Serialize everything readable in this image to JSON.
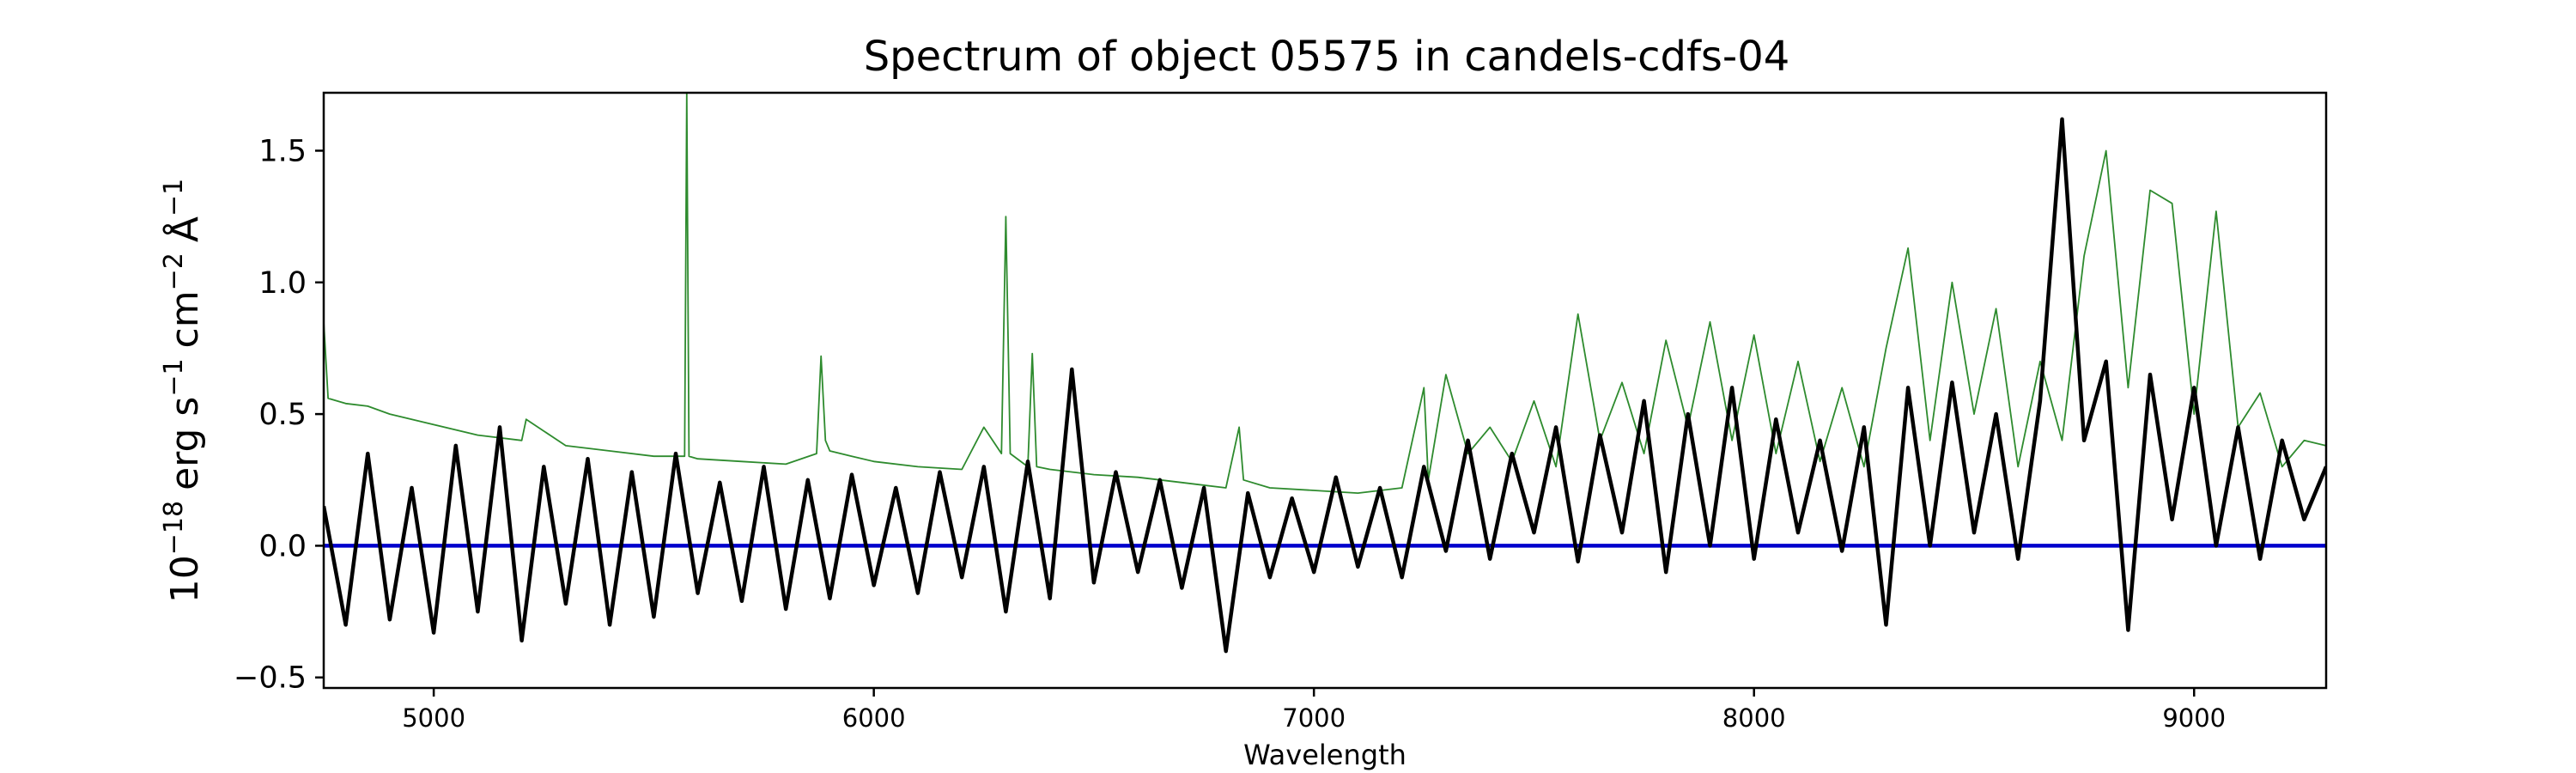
{
  "chart_data": {
    "type": "line",
    "title": "Spectrum of object 05575 in candels-cdfs-04",
    "xlabel": "Wavelength",
    "ylabel": {
      "base": "10",
      "base_exp": "−18",
      "unit1": "erg s",
      "unit1_exp": "−1",
      "unit2": "cm",
      "unit2_exp": "−2",
      "unit3": "Å",
      "unit3_exp": "−1"
    },
    "xlim": [
      4750,
      9300
    ],
    "ylim": [
      -0.54,
      1.72
    ],
    "xticks": [
      5000,
      6000,
      7000,
      8000,
      9000
    ],
    "xtick_labels": [
      "5000",
      "6000",
      "7000",
      "8000",
      "9000"
    ],
    "yticks": [
      -0.5,
      0.0,
      0.5,
      1.0,
      1.5
    ],
    "ytick_labels": [
      "−0.5",
      "0.0",
      "0.5",
      "1.0",
      "1.5"
    ],
    "grid": false,
    "colors": {
      "flux": "#000000",
      "error": "#2e8b2e",
      "zero": "#0000cc"
    },
    "series": [
      {
        "key": "flux",
        "style": "black-thick",
        "x": [
          4750,
          4800,
          4850,
          4900,
          4950,
          5000,
          5050,
          5100,
          5150,
          5200,
          5250,
          5300,
          5350,
          5400,
          5450,
          5500,
          5550,
          5600,
          5650,
          5700,
          5750,
          5800,
          5850,
          5900,
          5950,
          6000,
          6050,
          6100,
          6150,
          6200,
          6250,
          6300,
          6350,
          6400,
          6450,
          6500,
          6550,
          6600,
          6650,
          6700,
          6750,
          6800,
          6850,
          6900,
          6950,
          7000,
          7050,
          7100,
          7150,
          7200,
          7250,
          7300,
          7350,
          7400,
          7450,
          7500,
          7550,
          7600,
          7650,
          7700,
          7750,
          7800,
          7850,
          7900,
          7950,
          8000,
          8050,
          8100,
          8150,
          8200,
          8250,
          8300,
          8350,
          8400,
          8450,
          8500,
          8550,
          8600,
          8650,
          8700,
          8750,
          8800,
          8850,
          8900,
          8950,
          9000,
          9050,
          9100,
          9150,
          9200,
          9250,
          9300
        ],
        "y": [
          0.15,
          -0.3,
          0.35,
          -0.28,
          0.22,
          -0.33,
          0.38,
          -0.25,
          0.45,
          -0.36,
          0.3,
          -0.22,
          0.33,
          -0.3,
          0.28,
          -0.27,
          0.35,
          -0.18,
          0.24,
          -0.21,
          0.3,
          -0.24,
          0.25,
          -0.2,
          0.27,
          -0.15,
          0.22,
          -0.18,
          0.28,
          -0.12,
          0.3,
          -0.25,
          0.32,
          -0.2,
          0.67,
          -0.14,
          0.28,
          -0.1,
          0.25,
          -0.16,
          0.22,
          -0.4,
          0.2,
          -0.12,
          0.18,
          -0.1,
          0.26,
          -0.08,
          0.22,
          -0.12,
          0.3,
          -0.02,
          0.4,
          -0.05,
          0.35,
          0.05,
          0.45,
          -0.06,
          0.42,
          0.05,
          0.55,
          -0.1,
          0.5,
          0.0,
          0.6,
          -0.05,
          0.48,
          0.05,
          0.4,
          -0.02,
          0.45,
          -0.3,
          0.6,
          0.0,
          0.62,
          0.05,
          0.5,
          -0.05,
          0.55,
          1.62,
          0.4,
          0.7,
          -0.32,
          0.65,
          0.1,
          0.6,
          0.0,
          0.45,
          -0.05,
          0.4,
          0.1,
          0.3
        ]
      },
      {
        "key": "error",
        "style": "green-thin",
        "x": [
          4750,
          4760,
          4800,
          4850,
          4900,
          5000,
          5100,
          5200,
          5210,
          5300,
          5400,
          5500,
          5570,
          5575,
          5580,
          5600,
          5700,
          5800,
          5870,
          5880,
          5890,
          5900,
          5950,
          6000,
          6100,
          6200,
          6250,
          6290,
          6300,
          6310,
          6350,
          6360,
          6370,
          6400,
          6500,
          6600,
          6700,
          6800,
          6830,
          6840,
          6900,
          7000,
          7100,
          7200,
          7250,
          7260,
          7300,
          7350,
          7400,
          7450,
          7500,
          7550,
          7600,
          7650,
          7700,
          7750,
          7800,
          7850,
          7900,
          7950,
          8000,
          8050,
          8100,
          8150,
          8200,
          8250,
          8300,
          8350,
          8400,
          8450,
          8500,
          8550,
          8600,
          8650,
          8700,
          8750,
          8800,
          8850,
          8900,
          8950,
          9000,
          9050,
          9100,
          9150,
          9200,
          9250,
          9300
        ],
        "y": [
          0.85,
          0.56,
          0.54,
          0.53,
          0.5,
          0.46,
          0.42,
          0.4,
          0.48,
          0.38,
          0.36,
          0.34,
          0.34,
          1.72,
          0.34,
          0.33,
          0.32,
          0.31,
          0.35,
          0.72,
          0.4,
          0.36,
          0.34,
          0.32,
          0.3,
          0.29,
          0.45,
          0.35,
          1.25,
          0.35,
          0.3,
          0.73,
          0.3,
          0.29,
          0.27,
          0.26,
          0.24,
          0.22,
          0.45,
          0.25,
          0.22,
          0.21,
          0.2,
          0.22,
          0.6,
          0.25,
          0.65,
          0.35,
          0.45,
          0.32,
          0.55,
          0.3,
          0.88,
          0.4,
          0.62,
          0.35,
          0.78,
          0.45,
          0.85,
          0.4,
          0.8,
          0.35,
          0.7,
          0.32,
          0.6,
          0.3,
          0.75,
          1.13,
          0.4,
          1.0,
          0.5,
          0.9,
          0.3,
          0.7,
          0.4,
          1.1,
          1.5,
          0.6,
          1.35,
          1.3,
          0.5,
          1.27,
          0.45,
          0.58,
          0.3,
          0.4,
          0.38
        ]
      },
      {
        "key": "zero",
        "style": "blue-line",
        "x": [
          4750,
          9300
        ],
        "y": [
          0.0,
          0.0
        ]
      }
    ]
  }
}
